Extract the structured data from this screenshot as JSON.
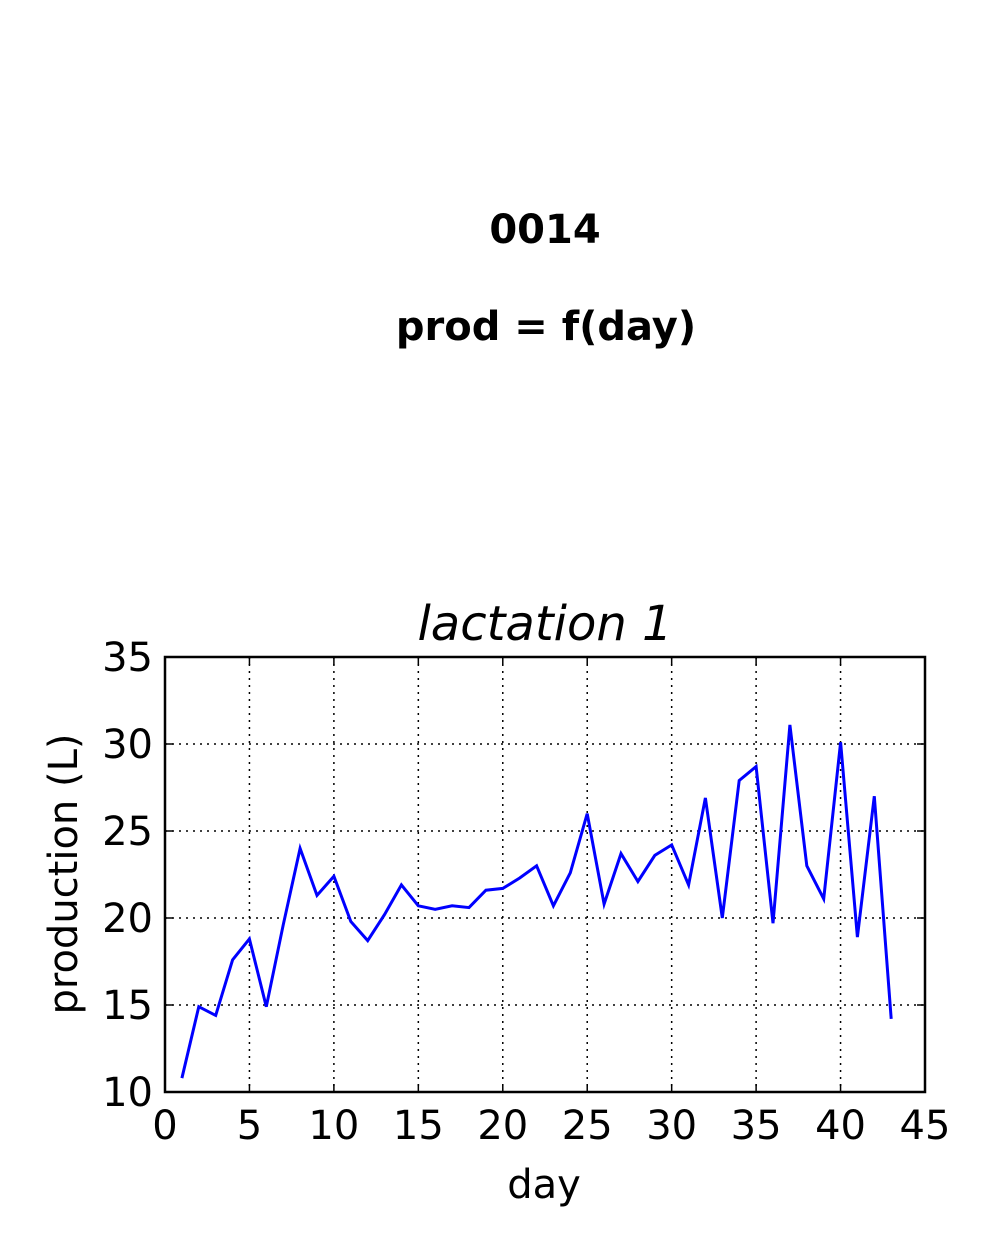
{
  "figure": {
    "id_label": "0014",
    "formula_label": "prod = f(day)"
  },
  "chart_data": {
    "type": "line",
    "title": "lactation 1",
    "xlabel": "day",
    "ylabel": "production (L)",
    "xlim": [
      0,
      45
    ],
    "ylim": [
      10,
      35
    ],
    "xticks": [
      0,
      5,
      10,
      15,
      20,
      25,
      30,
      35,
      40,
      45
    ],
    "yticks": [
      10,
      15,
      20,
      25,
      30,
      35
    ],
    "grid": true,
    "series": [
      {
        "color": "#0000ff",
        "x": [
          1,
          2,
          3,
          4,
          5,
          6,
          7,
          8,
          9,
          10,
          11,
          12,
          13,
          14,
          15,
          16,
          17,
          18,
          19,
          20,
          21,
          22,
          23,
          24,
          25,
          26,
          27,
          28,
          29,
          30,
          31,
          32,
          33,
          34,
          35,
          36,
          37,
          38,
          39,
          40,
          41,
          42,
          43
        ],
        "y": [
          10.8,
          14.9,
          14.4,
          17.6,
          18.8,
          14.9,
          19.6,
          24.0,
          21.3,
          22.4,
          19.8,
          18.7,
          20.2,
          21.9,
          20.7,
          20.5,
          20.7,
          20.6,
          21.6,
          21.7,
          22.3,
          23.0,
          20.7,
          22.6,
          26.0,
          20.8,
          23.7,
          22.1,
          23.6,
          24.2,
          21.9,
          26.9,
          20.0,
          27.9,
          28.7,
          19.7,
          31.1,
          23.0,
          21.1,
          30.1,
          18.9,
          27.0,
          14.2
        ]
      }
    ]
  }
}
